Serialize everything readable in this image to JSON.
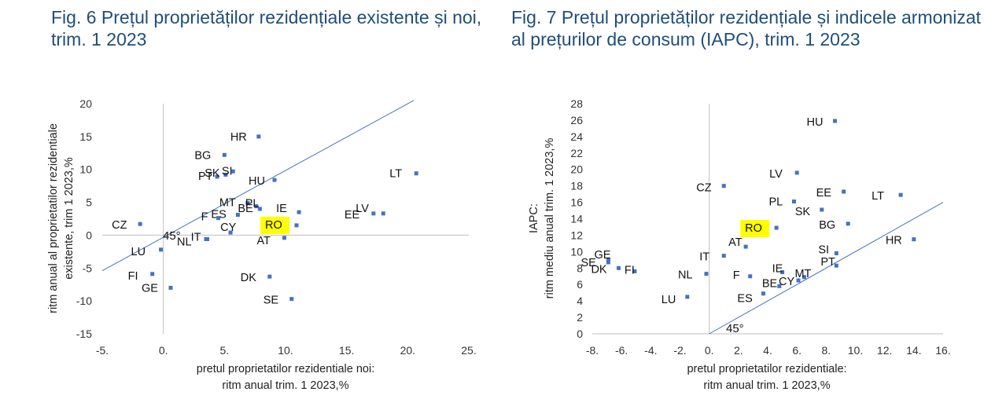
{
  "chart_data": [
    {
      "type": "scatter",
      "title": "Fig. 6 Prețul proprietăților rezidențiale existente și noi, trim. 1 2023",
      "xlabel": [
        "pretul proprietatilor rezidentiale noi:",
        "ritm anual trim. 1 2023,%"
      ],
      "ylabel": [
        "ritm  anual al proprietatilor rezidentiale",
        "existente, trim 1 2023,%"
      ],
      "xlim": [
        -5,
        25
      ],
      "ylim": [
        -15,
        20
      ],
      "x_ticks": [
        "-5.",
        "0.",
        "5.",
        "10.",
        "15.",
        "20.",
        "25."
      ],
      "y_ticks": [
        "20",
        "15",
        "10",
        "5",
        "0",
        "-5",
        "-10",
        "-15"
      ],
      "annotation": "45°",
      "highlight": "RO",
      "highlight_color": "#ffff00",
      "marker_color": "#4472c4",
      "line_color": "#4472c4",
      "points": [
        {
          "label": "HR",
          "x": 7.8,
          "y": 15.0
        },
        {
          "label": "BG",
          "x": 5.0,
          "y": 12.2
        },
        {
          "label": "PT",
          "x": 4.4,
          "y": 8.9
        },
        {
          "label": "SI",
          "x": 5.1,
          "y": 9.2
        },
        {
          "label": "SK",
          "x": 5.7,
          "y": 9.7
        },
        {
          "label": "HU",
          "x": 9.1,
          "y": 8.4
        },
        {
          "label": "LT",
          "x": 20.7,
          "y": 9.4
        },
        {
          "label": "MT",
          "x": 6.9,
          "y": 4.9
        },
        {
          "label": "PL",
          "x": 7.6,
          "y": 4.4
        },
        {
          "label": "BE",
          "x": 7.9,
          "y": 4.0
        },
        {
          "label": "ES",
          "x": 6.1,
          "y": 3.1
        },
        {
          "label": "F",
          "x": 4.5,
          "y": 2.6
        },
        {
          "label": "IE",
          "x": 11.1,
          "y": 3.5
        },
        {
          "label": "LV",
          "x": 18.0,
          "y": 3.3
        },
        {
          "label": "EE",
          "x": 17.2,
          "y": 3.3
        },
        {
          "label": "CZ",
          "x": -1.9,
          "y": 1.7
        },
        {
          "label": "CY",
          "x": 5.5,
          "y": 0.4
        },
        {
          "label": "RO",
          "x": 10.9,
          "y": 1.5
        },
        {
          "label": "AT",
          "x": 9.9,
          "y": -0.4
        },
        {
          "label": "IT",
          "x": 3.6,
          "y": -0.6
        },
        {
          "label": "NL",
          "x": 3.5,
          "y": -0.6
        },
        {
          "label": "LU",
          "x": -0.2,
          "y": -2.2
        },
        {
          "label": "FI",
          "x": -0.9,
          "y": -5.9
        },
        {
          "label": "GE",
          "x": 0.6,
          "y": -8.0
        },
        {
          "label": "DK",
          "x": 8.7,
          "y": -6.3
        },
        {
          "label": "SE",
          "x": 10.5,
          "y": -9.7
        }
      ]
    },
    {
      "type": "scatter",
      "title": "Fig. 7 Prețul proprietăților rezidențiale și indicele armonizat al prețurilor de consum (IAPC), trim. 1 2023",
      "xlabel": [
        "pretul proprietatilor rezidentiale:",
        "ritm anual trim. 1 2023,%"
      ],
      "ylabel": [
        "IAPC:",
        "ritm mediu anual trim. 1 2023,%"
      ],
      "xlim": [
        -8,
        16
      ],
      "ylim": [
        0,
        28
      ],
      "x_ticks": [
        "-8.",
        "-6.",
        "-4.",
        "-2.",
        "0.",
        "2.",
        "4.",
        "6.",
        "8.",
        "10.",
        "12.",
        "14.",
        "16."
      ],
      "y_ticks": [
        "28",
        "26",
        "24",
        "22",
        "20",
        "18",
        "16",
        "14",
        "12",
        "10",
        "8",
        "6",
        "4",
        "2",
        "0"
      ],
      "annotation": "45°",
      "highlight": "RO",
      "highlight_color": "#ffff00",
      "marker_color": "#4472c4",
      "line_color": "#4472c4",
      "points": [
        {
          "label": "HU",
          "x": 8.6,
          "y": 25.9
        },
        {
          "label": "LV",
          "x": 6.0,
          "y": 19.6
        },
        {
          "label": "CZ",
          "x": 1.0,
          "y": 18.0
        },
        {
          "label": "EE",
          "x": 9.2,
          "y": 17.3
        },
        {
          "label": "LT",
          "x": 13.1,
          "y": 16.9
        },
        {
          "label": "PL",
          "x": 5.8,
          "y": 16.1
        },
        {
          "label": "SK",
          "x": 7.7,
          "y": 15.1
        },
        {
          "label": "BG",
          "x": 9.5,
          "y": 13.4
        },
        {
          "label": "RO",
          "x": 4.6,
          "y": 12.9
        },
        {
          "label": "HR",
          "x": 14.0,
          "y": 11.5
        },
        {
          "label": "AT",
          "x": 2.5,
          "y": 10.6
        },
        {
          "label": "IT",
          "x": 1.0,
          "y": 9.5
        },
        {
          "label": "SI",
          "x": 8.7,
          "y": 9.8
        },
        {
          "label": "GE",
          "x": -6.9,
          "y": 9.0
        },
        {
          "label": "SE",
          "x": -6.9,
          "y": 8.7
        },
        {
          "label": "DK",
          "x": -6.2,
          "y": 8.0
        },
        {
          "label": "FI",
          "x": -5.1,
          "y": 7.6
        },
        {
          "label": "NL",
          "x": -0.2,
          "y": 7.3
        },
        {
          "label": "F",
          "x": 2.8,
          "y": 7.0
        },
        {
          "label": "IE",
          "x": 5.0,
          "y": 7.5
        },
        {
          "label": "MT",
          "x": 6.5,
          "y": 6.9
        },
        {
          "label": "PT",
          "x": 8.7,
          "y": 8.3
        },
        {
          "label": "CY",
          "x": 6.1,
          "y": 6.5
        },
        {
          "label": "BE",
          "x": 4.8,
          "y": 5.8
        },
        {
          "label": "ES",
          "x": 3.7,
          "y": 4.9
        },
        {
          "label": "LU",
          "x": -1.5,
          "y": 4.5
        }
      ]
    }
  ]
}
